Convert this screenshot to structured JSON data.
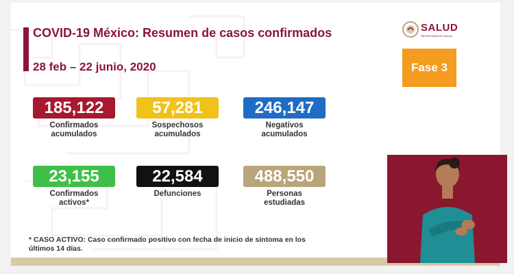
{
  "slide": {
    "title": "COVID-19 México: Resumen de casos confirmados",
    "date_range": "28 feb – 22 junio, 2020",
    "logo_text": "SALUD",
    "logo_subtext": "SECRETARÍA DE SALUD",
    "phase_label": "Fase 3"
  },
  "stats": [
    {
      "value": "185,122",
      "label_line1": "Confirmados",
      "label_line2": "acumulados",
      "color": "#a6192e"
    },
    {
      "value": "57,281",
      "label_line1": "Sospechosos",
      "label_line2": "acumulados",
      "color": "#f1c21a"
    },
    {
      "value": "246,147",
      "label_line1": "Negativos",
      "label_line2": "acumulados",
      "color": "#1f6cc4"
    },
    {
      "value": "23,155",
      "label_line1": "Confirmados",
      "label_line2": "activos*",
      "color": "#3fbf4a"
    },
    {
      "value": "22,584",
      "label_line1": "Defunciones",
      "label_line2": "",
      "color": "#111111"
    },
    {
      "value": "488,550",
      "label_line1": "Personas",
      "label_line2": "estudiadas",
      "color": "#b9a57b"
    }
  ],
  "footnote": {
    "line1": "* CASO ACTIVO: Caso confirmado positivo con fecha de inicio de síntoma en los",
    "line2": "últimos 14 días."
  },
  "colors": {
    "brand": "#8a1538",
    "phase": "#f39c1f",
    "interpreter_bg": "#8b1630"
  },
  "icons": {
    "logo_emblem": "government-eagle-emblem-icon"
  }
}
